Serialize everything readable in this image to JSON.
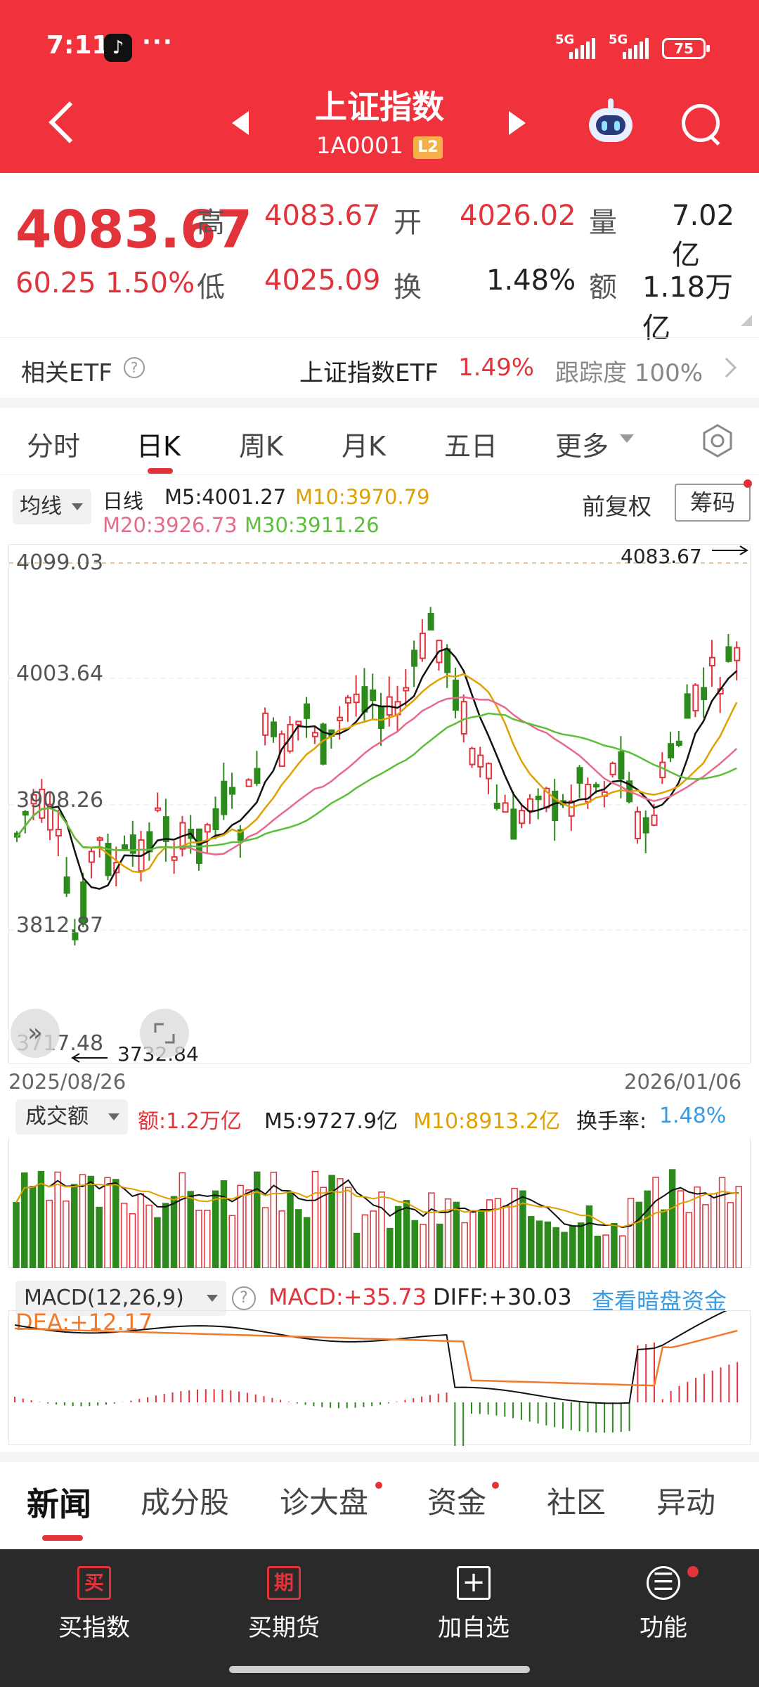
{
  "status_bar": {
    "time": "7:11",
    "app_icon": "tiktok-icon",
    "more": "···",
    "net1": "5G",
    "net2": "5G",
    "battery": "75"
  },
  "header": {
    "title": "上证指数",
    "code": "1A0001",
    "badge": "L2"
  },
  "quote": {
    "price": "4083.67",
    "change": "60.25",
    "change_pct": "1.50%",
    "high_label": "高",
    "high": "4083.67",
    "low_label": "低",
    "low": "4025.09",
    "open_label": "开",
    "open": "4026.02",
    "turnover_label": "换",
    "turnover": "1.48%",
    "volume_label": "量",
    "volume": "7.02亿",
    "amount_label": "额",
    "amount": "1.18万亿"
  },
  "etf": {
    "label": "相关ETF",
    "name": "上证指数ETF",
    "pct": "1.49%",
    "tracking": "跟踪度 100%"
  },
  "tabs": [
    "分时",
    "日K",
    "周K",
    "月K",
    "五日",
    "更多"
  ],
  "ma_legend": {
    "button": "均线",
    "period": "日线",
    "m5": "M5:4001.27",
    "m10": "M10:3970.79",
    "m20": "M20:3926.73",
    "m30": "M30:3911.26",
    "adjust": "前复权",
    "chip": "筹码"
  },
  "chart": {
    "y_labels": [
      "4099.03",
      "4003.64",
      "3908.26",
      "3812.87",
      "3717.48"
    ],
    "max_marker": "4083.67",
    "min_marker": "3732.84",
    "start_date": "2025/08/26",
    "end_date": "2026/01/06"
  },
  "volume_legend": {
    "button": "成交额",
    "amount": "额:1.2万亿",
    "m5": "M5:9727.9亿",
    "m10": "M10:8913.2亿",
    "turnover_label": "换手率:",
    "turnover": "1.48%"
  },
  "macd_legend": {
    "button": "MACD(12,26,9)",
    "macd": "MACD:+35.73",
    "diff": "DIFF:+30.03",
    "link": "查看暗盘资金",
    "dea": "DEA:+12.17"
  },
  "news_tabs": [
    "新闻",
    "成分股",
    "诊大盘",
    "资金",
    "社区",
    "异动"
  ],
  "bottom_bar": [
    {
      "icon": "买",
      "label": "买指数"
    },
    {
      "icon": "期",
      "label": "买期货"
    },
    {
      "icon": "+",
      "label": "加自选"
    },
    {
      "icon": "☰",
      "label": "功能"
    }
  ],
  "colors": {
    "up": "#e2333b",
    "down": "#2d8a1c",
    "header": "#ef323c",
    "m10": "#e0a100",
    "m20": "#e86a8a",
    "m30": "#5cbf3a"
  }
}
